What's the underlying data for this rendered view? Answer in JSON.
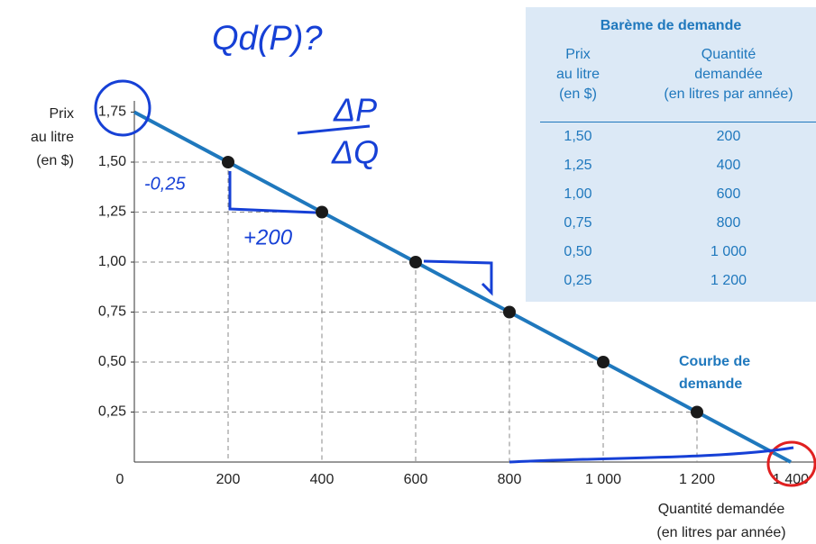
{
  "chart_data": {
    "type": "demand",
    "y_label": [
      "Prix",
      "au litre",
      "(en $)"
    ],
    "x_label": [
      "Quantité demandée",
      "(en litres par année)"
    ],
    "curve_label": [
      "Courbe de",
      "demande"
    ],
    "color": "#1f78bd",
    "line": {
      "x": [
        0,
        1400
      ],
      "values": [
        1.75,
        0
      ]
    },
    "points": {
      "x": [
        200,
        400,
        600,
        800,
        1000,
        1200
      ],
      "values": [
        1.5,
        1.25,
        1.0,
        0.75,
        0.5,
        0.25
      ]
    },
    "xlim": [
      0,
      1400
    ],
    "ylim": [
      0,
      1.75
    ],
    "xticks": [
      0,
      200,
      400,
      600,
      800,
      {
        "value": 1000,
        "label": "1 000"
      },
      {
        "value": 1200,
        "label": "1 200"
      },
      {
        "value": 1400,
        "label": "1 400"
      }
    ],
    "yticks": [
      {
        "value": 0.25,
        "label": "0,25"
      },
      {
        "value": 0.5,
        "label": "0,50"
      },
      {
        "value": 0.75,
        "label": "0,75"
      },
      {
        "value": 1.0,
        "label": "1,00"
      },
      {
        "value": 1.25,
        "label": "1,25"
      },
      {
        "value": 1.5,
        "label": "1,50"
      },
      {
        "value": 1.75,
        "label": "1,75"
      }
    ],
    "table": {
      "title": "Barème de demande",
      "headers": [
        [
          "Prix",
          "au litre",
          "(en $)"
        ],
        [
          "Quantité",
          "demandée",
          "(en litres par année)"
        ]
      ],
      "rows": [
        [
          "1,50",
          "200"
        ],
        [
          "1,25",
          "400"
        ],
        [
          "1,00",
          "600"
        ],
        [
          "0,75",
          "800"
        ],
        [
          "0,50",
          "1 000"
        ],
        [
          "0,25",
          "1 200"
        ]
      ]
    },
    "handwritten": [
      "Qd(P)?",
      "ΔP",
      "ΔQ",
      "-0,25",
      "+200"
    ]
  }
}
